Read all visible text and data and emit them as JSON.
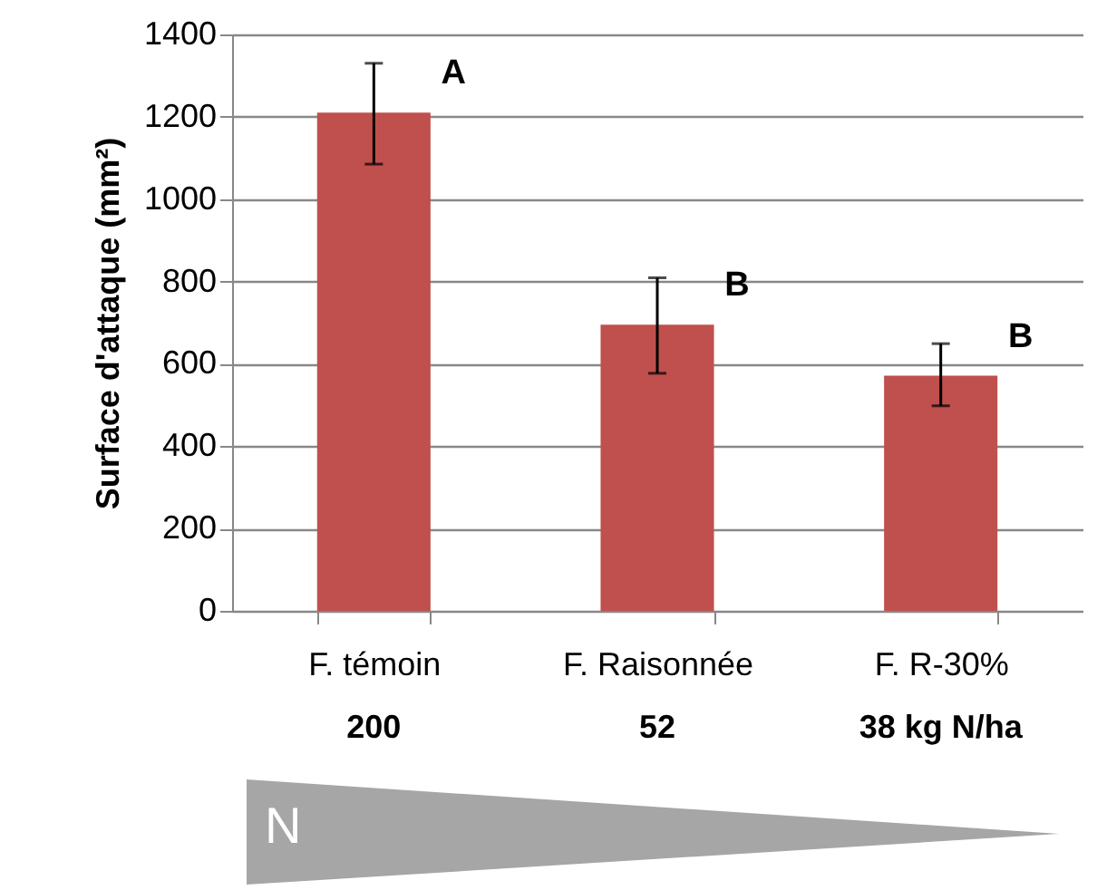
{
  "chart_data": {
    "type": "bar",
    "ylabel": "Surface d'attaque (mm²)",
    "categories": [
      "F. témoin",
      "F. Raisonnée",
      "F. R-30%"
    ],
    "values": [
      1210,
      695,
      571
    ],
    "errors": [
      [
        1085,
        1330
      ],
      [
        577,
        809
      ],
      [
        498,
        649
      ]
    ],
    "color": "#c0504d",
    "ylim": [
      0,
      1400
    ],
    "yticks": [
      0,
      200,
      400,
      600,
      800,
      1000,
      1200,
      1400
    ],
    "grid": "y",
    "annotations": [
      "A",
      "B",
      "B",
      "200",
      "52",
      "38  kg N/ha",
      "N"
    ]
  }
}
